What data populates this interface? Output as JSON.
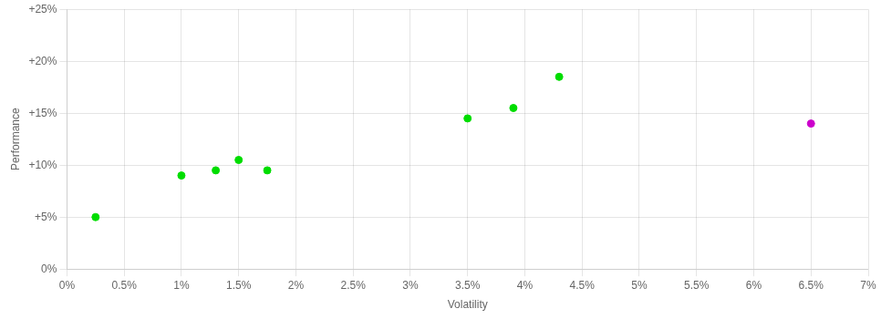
{
  "chart_data": {
    "type": "scatter",
    "xlabel": "Volatility",
    "ylabel": "Performance",
    "series": [
      {
        "color": "#00dd00",
        "values": [
          [
            0.25,
            5.0
          ],
          [
            1.0,
            9.0
          ],
          [
            1.3,
            9.5
          ],
          [
            1.5,
            10.5
          ],
          [
            1.75,
            9.5
          ],
          [
            3.5,
            14.5
          ],
          [
            3.9,
            15.5
          ],
          [
            4.3,
            18.5
          ]
        ]
      },
      {
        "color": "#cc00cc",
        "values": [
          [
            6.5,
            14.0
          ]
        ]
      }
    ],
    "xlim": [
      0.0,
      7.0
    ],
    "ylim": [
      0.0,
      25.0
    ],
    "xticks": [
      {
        "value": 0.0,
        "label": "0%"
      },
      {
        "value": 0.5,
        "label": "0.5%"
      },
      {
        "value": 1.0,
        "label": "1%"
      },
      {
        "value": 1.5,
        "label": "1.5%"
      },
      {
        "value": 2.0,
        "label": "2%"
      },
      {
        "value": 2.5,
        "label": "2.5%"
      },
      {
        "value": 3.0,
        "label": "3%"
      },
      {
        "value": 3.5,
        "label": "3.5%"
      },
      {
        "value": 4.0,
        "label": "4%"
      },
      {
        "value": 4.5,
        "label": "4.5%"
      },
      {
        "value": 5.0,
        "label": "5%"
      },
      {
        "value": 5.5,
        "label": "5.5%"
      },
      {
        "value": 6.0,
        "label": "6%"
      },
      {
        "value": 6.5,
        "label": "6.5%"
      },
      {
        "value": 7.0,
        "label": "7%"
      }
    ],
    "yticks": [
      {
        "value": 0,
        "label": "0%"
      },
      {
        "value": 5,
        "label": "+5%"
      },
      {
        "value": 10,
        "label": "+10%"
      },
      {
        "value": 15,
        "label": "+15%"
      },
      {
        "value": 20,
        "label": "+20%"
      },
      {
        "value": 25,
        "label": "+25%"
      }
    ],
    "grid": true
  }
}
